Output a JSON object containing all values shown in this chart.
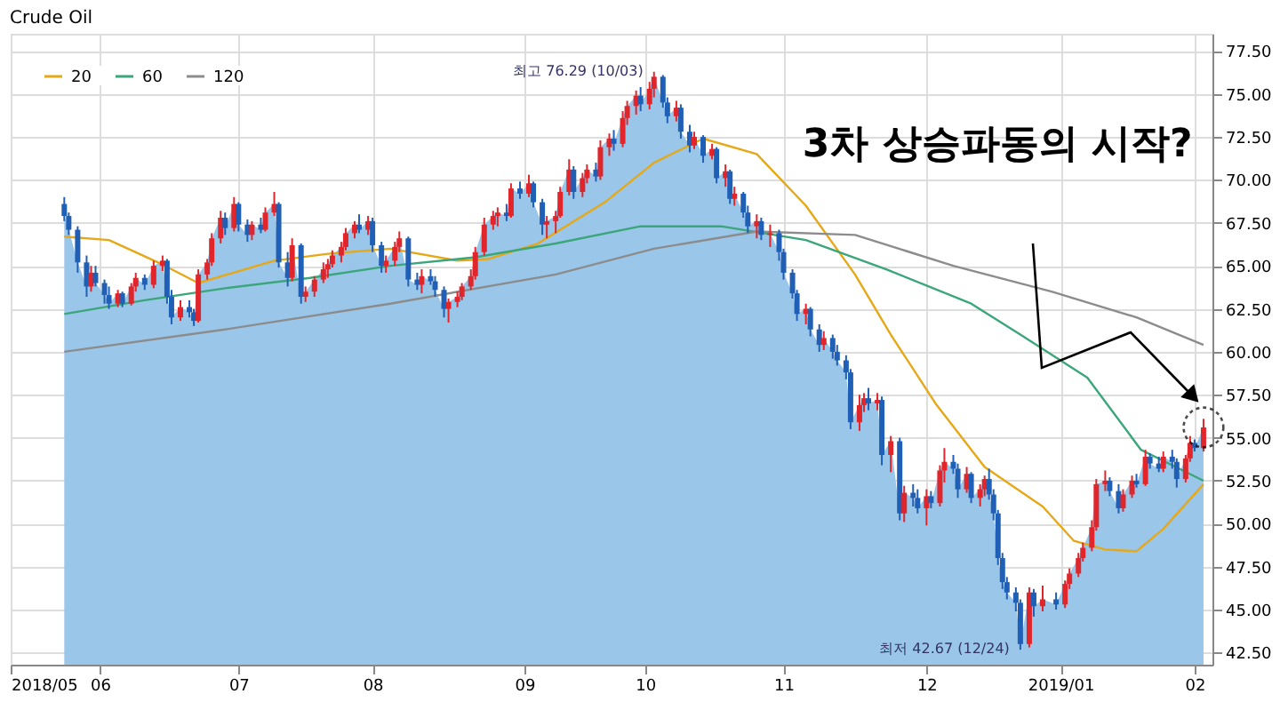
{
  "chart_data": {
    "type": "candlestick",
    "title": "Crude Oil",
    "x": [
      "2018-05-24",
      "2018-05-25",
      "2018-05-27",
      "2018-05-29",
      "2018-05-30",
      "2018-05-31",
      "2018-06-02",
      "2018-06-03",
      "2018-06-05",
      "2018-06-06",
      "2018-06-08",
      "2018-06-09",
      "2018-06-11",
      "2018-06-13",
      "2018-06-15",
      "2018-06-16",
      "2018-06-17",
      "2018-06-19",
      "2018-06-21",
      "2018-06-22",
      "2018-06-23",
      "2018-06-25",
      "2018-06-26",
      "2018-06-28",
      "2018-06-29",
      "2018-07-01",
      "2018-07-02",
      "2018-07-04",
      "2018-07-05",
      "2018-07-07",
      "2018-07-08",
      "2018-07-10",
      "2018-07-11",
      "2018-07-13",
      "2018-07-14",
      "2018-07-16",
      "2018-07-17",
      "2018-07-19",
      "2018-07-21",
      "2018-07-22",
      "2018-07-23",
      "2018-07-25",
      "2018-07-26",
      "2018-07-28",
      "2018-07-29",
      "2018-07-31",
      "2018-08-01",
      "2018-08-03",
      "2018-08-04",
      "2018-08-06",
      "2018-08-07",
      "2018-08-09",
      "2018-08-11",
      "2018-08-12",
      "2018-08-14",
      "2018-08-15",
      "2018-08-17",
      "2018-08-18",
      "2018-08-20",
      "2018-08-21",
      "2018-08-23",
      "2018-08-24",
      "2018-08-26",
      "2018-08-28",
      "2018-08-29",
      "2018-08-31",
      "2018-09-01",
      "2018-09-03",
      "2018-09-05",
      "2018-09-06",
      "2018-09-08",
      "2018-09-09",
      "2018-09-11",
      "2018-09-12",
      "2018-09-14",
      "2018-09-15",
      "2018-09-17",
      "2018-09-18",
      "2018-09-20",
      "2018-09-21",
      "2018-09-23",
      "2018-09-24",
      "2018-09-26",
      "2018-09-27",
      "2018-09-29",
      "2018-09-30",
      "2018-10-02",
      "2018-10-03",
      "2018-10-05",
      "2018-10-06",
      "2018-10-08",
      "2018-10-09",
      "2018-10-11",
      "2018-10-12",
      "2018-10-14",
      "2018-10-16",
      "2018-10-17",
      "2018-10-19",
      "2018-10-20",
      "2018-10-21",
      "2018-10-23",
      "2018-10-24",
      "2018-10-26",
      "2018-10-27",
      "2018-10-29",
      "2018-10-31",
      "2018-11-01",
      "2018-11-03",
      "2018-11-04",
      "2018-11-06",
      "2018-11-07",
      "2018-11-09",
      "2018-11-10",
      "2018-11-12",
      "2018-11-13",
      "2018-11-15",
      "2018-11-16",
      "2018-11-18",
      "2018-11-19",
      "2018-11-20",
      "2018-11-22",
      "2018-11-23",
      "2018-11-25",
      "2018-11-27",
      "2018-11-28",
      "2018-11-30",
      "2018-12-01",
      "2018-12-03",
      "2018-12-04",
      "2018-12-06",
      "2018-12-07",
      "2018-12-09",
      "2018-12-10",
      "2018-12-12",
      "2018-12-13",
      "2018-12-15",
      "2018-12-16",
      "2018-12-17",
      "2018-12-18",
      "2018-12-19",
      "2018-12-20",
      "2018-12-21",
      "2018-12-23",
      "2018-12-24",
      "2018-12-26",
      "2018-12-27",
      "2018-12-29",
      "2019-01-01",
      "2019-01-03",
      "2019-01-04",
      "2019-01-06",
      "2019-01-07",
      "2019-01-09",
      "2019-01-10",
      "2019-01-12",
      "2019-01-13",
      "2019-01-15",
      "2019-01-16",
      "2019-01-18",
      "2019-01-19",
      "2019-01-21",
      "2019-01-22",
      "2019-01-24",
      "2019-01-25",
      "2019-01-27",
      "2019-01-28",
      "2019-01-30",
      "2019-01-31",
      "2019-02-01",
      "2019-02-03"
    ],
    "ohlc": [
      [
        68.6,
        69.0,
        67.6,
        67.9
      ],
      [
        67.9,
        68.1,
        66.8,
        67.1
      ],
      [
        67.1,
        67.3,
        64.6,
        65.2
      ],
      [
        65.2,
        65.6,
        63.2,
        63.8
      ],
      [
        63.8,
        65.0,
        63.5,
        64.6
      ],
      [
        64.6,
        65.0,
        63.8,
        64.0
      ],
      [
        64.0,
        64.2,
        62.8,
        63.3
      ],
      [
        63.3,
        63.8,
        62.5,
        62.8
      ],
      [
        62.8,
        63.6,
        62.6,
        63.4
      ],
      [
        63.4,
        63.5,
        62.6,
        62.8
      ],
      [
        62.8,
        64.0,
        62.7,
        63.8
      ],
      [
        63.8,
        64.6,
        63.5,
        64.3
      ],
      [
        64.3,
        64.5,
        63.6,
        63.9
      ],
      [
        63.9,
        65.3,
        63.7,
        65.0
      ],
      [
        65.0,
        65.6,
        64.7,
        65.3
      ],
      [
        65.3,
        65.4,
        62.8,
        63.2
      ],
      [
        63.2,
        63.6,
        61.6,
        62.0
      ],
      [
        62.0,
        63.0,
        61.8,
        62.6
      ],
      [
        62.6,
        63.0,
        62.0,
        62.3
      ],
      [
        62.3,
        62.5,
        61.5,
        61.8
      ],
      [
        61.8,
        64.8,
        61.7,
        64.5
      ],
      [
        64.5,
        65.4,
        64.2,
        65.2
      ],
      [
        65.2,
        66.9,
        65.0,
        66.6
      ],
      [
        66.6,
        68.2,
        66.3,
        67.8
      ],
      [
        67.8,
        68.1,
        66.8,
        67.2
      ],
      [
        67.2,
        69.0,
        67.0,
        68.6
      ],
      [
        68.6,
        68.7,
        67.0,
        67.4
      ],
      [
        67.4,
        67.7,
        66.4,
        66.8
      ],
      [
        66.8,
        67.6,
        66.5,
        67.4
      ],
      [
        67.4,
        67.8,
        66.9,
        67.1
      ],
      [
        67.1,
        68.4,
        67.0,
        68.1
      ],
      [
        68.1,
        69.3,
        67.9,
        68.6
      ],
      [
        68.6,
        68.7,
        64.9,
        65.2
      ],
      [
        65.2,
        65.8,
        63.8,
        64.3
      ],
      [
        64.3,
        66.6,
        64.1,
        66.2
      ],
      [
        66.2,
        66.3,
        62.8,
        63.2
      ],
      [
        63.2,
        63.8,
        62.9,
        63.5
      ],
      [
        63.5,
        64.4,
        63.2,
        64.2
      ],
      [
        64.2,
        65.2,
        64.0,
        64.8
      ],
      [
        64.8,
        65.4,
        64.3,
        65.1
      ],
      [
        65.1,
        65.9,
        64.9,
        65.6
      ],
      [
        65.6,
        66.4,
        65.2,
        66.1
      ],
      [
        66.1,
        67.2,
        65.9,
        66.9
      ],
      [
        66.9,
        67.6,
        66.6,
        67.4
      ],
      [
        67.4,
        68.0,
        66.9,
        67.1
      ],
      [
        67.1,
        67.9,
        66.8,
        67.6
      ],
      [
        67.6,
        67.8,
        65.8,
        66.2
      ],
      [
        66.2,
        66.4,
        64.6,
        65.0
      ],
      [
        65.0,
        65.6,
        64.6,
        65.3
      ],
      [
        65.3,
        66.4,
        65.0,
        66.1
      ],
      [
        66.1,
        67.0,
        65.8,
        66.6
      ],
      [
        66.6,
        66.7,
        63.8,
        64.2
      ],
      [
        64.2,
        64.6,
        63.6,
        63.9
      ],
      [
        63.9,
        64.8,
        63.4,
        64.4
      ],
      [
        64.4,
        64.8,
        63.9,
        64.1
      ],
      [
        64.1,
        64.4,
        63.2,
        63.6
      ],
      [
        63.6,
        63.8,
        62.0,
        62.5
      ],
      [
        62.5,
        63.1,
        61.7,
        62.9
      ],
      [
        62.9,
        63.5,
        62.6,
        63.2
      ],
      [
        63.2,
        64.0,
        63.0,
        63.8
      ],
      [
        63.8,
        64.8,
        63.6,
        64.4
      ],
      [
        64.4,
        66.1,
        64.2,
        65.8
      ],
      [
        65.8,
        67.8,
        65.6,
        67.4
      ],
      [
        67.4,
        68.2,
        67.1,
        67.9
      ],
      [
        67.9,
        68.4,
        67.3,
        68.1
      ],
      [
        68.1,
        68.6,
        67.6,
        67.9
      ],
      [
        67.9,
        69.8,
        67.8,
        69.5
      ],
      [
        69.5,
        69.9,
        68.9,
        69.2
      ],
      [
        69.2,
        70.3,
        69.0,
        69.8
      ],
      [
        69.8,
        69.9,
        68.4,
        68.7
      ],
      [
        68.7,
        68.9,
        66.8,
        67.4
      ],
      [
        67.4,
        67.9,
        66.6,
        67.6
      ],
      [
        67.6,
        68.2,
        66.9,
        67.9
      ],
      [
        67.9,
        69.6,
        67.8,
        69.3
      ],
      [
        69.3,
        71.2,
        69.1,
        70.6
      ],
      [
        70.6,
        70.8,
        68.9,
        69.3
      ],
      [
        69.3,
        70.4,
        69.0,
        70.1
      ],
      [
        70.1,
        70.9,
        69.8,
        70.6
      ],
      [
        70.6,
        71.0,
        69.9,
        70.2
      ],
      [
        70.2,
        72.3,
        70.0,
        71.9
      ],
      [
        71.9,
        72.7,
        71.4,
        72.4
      ],
      [
        72.4,
        72.9,
        71.7,
        72.1
      ],
      [
        72.1,
        74.0,
        71.9,
        73.6
      ],
      [
        73.6,
        74.6,
        73.2,
        74.3
      ],
      [
        74.3,
        75.2,
        73.8,
        74.9
      ],
      [
        74.9,
        75.4,
        74.0,
        74.4
      ],
      [
        74.4,
        75.7,
        74.1,
        75.3
      ],
      [
        75.3,
        76.29,
        74.8,
        76.0
      ],
      [
        76.0,
        76.1,
        74.2,
        74.5
      ],
      [
        74.5,
        74.8,
        73.3,
        73.7
      ],
      [
        73.7,
        74.6,
        73.4,
        74.2
      ],
      [
        74.2,
        74.4,
        72.4,
        72.8
      ],
      [
        72.8,
        73.2,
        71.6,
        72.0
      ],
      [
        72.0,
        72.8,
        71.8,
        72.5
      ],
      [
        72.5,
        72.6,
        71.0,
        71.4
      ],
      [
        71.4,
        72.1,
        71.2,
        71.8
      ],
      [
        71.8,
        71.9,
        69.8,
        70.1
      ],
      [
        70.1,
        70.9,
        69.6,
        70.5
      ],
      [
        70.5,
        70.6,
        68.6,
        68.9
      ],
      [
        68.9,
        69.6,
        68.5,
        69.2
      ],
      [
        69.2,
        69.3,
        67.8,
        68.1
      ],
      [
        68.1,
        68.5,
        66.9,
        67.3
      ],
      [
        67.3,
        68.0,
        66.6,
        67.6
      ],
      [
        67.6,
        67.8,
        66.5,
        66.8
      ],
      [
        66.8,
        67.4,
        66.1,
        66.9
      ],
      [
        66.9,
        67.1,
        65.3,
        65.8
      ],
      [
        65.8,
        66.0,
        64.2,
        64.6
      ],
      [
        64.6,
        64.8,
        63.1,
        63.4
      ],
      [
        63.4,
        63.6,
        61.8,
        62.2
      ],
      [
        62.2,
        62.8,
        61.6,
        62.5
      ],
      [
        62.5,
        62.6,
        60.9,
        61.3
      ],
      [
        61.3,
        61.6,
        60.0,
        60.4
      ],
      [
        60.4,
        61.2,
        60.1,
        60.8
      ],
      [
        60.8,
        61.0,
        59.6,
        60.0
      ],
      [
        60.0,
        60.4,
        59.2,
        59.5
      ],
      [
        59.5,
        59.8,
        58.4,
        58.8
      ],
      [
        58.8,
        59.0,
        55.5,
        55.9
      ],
      [
        55.9,
        57.5,
        55.4,
        56.9
      ],
      [
        56.9,
        57.6,
        56.5,
        57.3
      ],
      [
        57.3,
        57.9,
        56.6,
        57.0
      ],
      [
        57.0,
        57.6,
        56.6,
        57.2
      ],
      [
        57.2,
        57.4,
        53.4,
        54.0
      ],
      [
        54.0,
        55.1,
        53.0,
        54.8
      ],
      [
        54.8,
        55.0,
        50.2,
        50.6
      ],
      [
        50.6,
        52.2,
        50.1,
        51.8
      ],
      [
        51.8,
        52.3,
        51.0,
        51.5
      ],
      [
        51.5,
        52.0,
        50.6,
        50.9
      ],
      [
        50.9,
        52.0,
        49.9,
        51.6
      ],
      [
        51.6,
        51.9,
        50.9,
        51.2
      ],
      [
        51.2,
        53.4,
        51.0,
        53.1
      ],
      [
        53.1,
        54.4,
        52.4,
        53.6
      ],
      [
        53.6,
        54.0,
        52.9,
        53.2
      ],
      [
        53.2,
        53.5,
        51.5,
        52.0
      ],
      [
        52.0,
        53.3,
        51.8,
        52.9
      ],
      [
        52.9,
        53.0,
        51.2,
        51.5
      ],
      [
        51.5,
        52.3,
        51.0,
        52.0
      ],
      [
        52.0,
        52.8,
        51.6,
        52.6
      ],
      [
        52.6,
        53.2,
        51.4,
        51.7
      ],
      [
        51.7,
        52.0,
        50.2,
        50.6
      ],
      [
        50.6,
        50.8,
        47.6,
        48.0
      ],
      [
        48.0,
        48.3,
        46.2,
        46.6
      ],
      [
        46.6,
        46.9,
        45.6,
        46.0
      ],
      [
        46.0,
        46.3,
        44.9,
        45.4
      ],
      [
        45.4,
        45.6,
        42.67,
        43.0
      ],
      [
        43.0,
        46.3,
        42.8,
        46.0
      ],
      [
        46.0,
        46.2,
        44.6,
        45.2
      ],
      [
        45.2,
        46.4,
        44.9,
        45.6
      ],
      [
        45.6,
        46.0,
        45.0,
        45.3
      ],
      [
        45.3,
        46.7,
        45.1,
        46.5
      ],
      [
        46.5,
        47.4,
        46.2,
        47.1
      ],
      [
        47.1,
        48.3,
        46.9,
        48.0
      ],
      [
        48.0,
        48.9,
        47.8,
        48.6
      ],
      [
        48.6,
        50.2,
        48.4,
        49.8
      ],
      [
        49.8,
        52.6,
        49.6,
        52.3
      ],
      [
        52.3,
        53.1,
        51.9,
        52.5
      ],
      [
        52.5,
        52.7,
        51.6,
        51.9
      ],
      [
        51.9,
        52.3,
        50.6,
        50.9
      ],
      [
        50.9,
        52.0,
        50.7,
        51.7
      ],
      [
        51.7,
        52.8,
        51.5,
        52.5
      ],
      [
        52.5,
        52.9,
        52.1,
        52.3
      ],
      [
        52.3,
        54.3,
        52.2,
        53.9
      ],
      [
        53.9,
        54.1,
        53.2,
        53.5
      ],
      [
        53.5,
        53.9,
        53.0,
        53.2
      ],
      [
        53.2,
        54.2,
        53.0,
        53.9
      ],
      [
        53.9,
        54.3,
        53.2,
        53.6
      ],
      [
        53.6,
        53.8,
        52.1,
        52.6
      ],
      [
        52.6,
        54.0,
        52.4,
        53.8
      ],
      [
        53.8,
        55.1,
        53.6,
        54.7
      ],
      [
        54.7,
        54.9,
        54.2,
        54.4
      ],
      [
        54.4,
        56.1,
        54.2,
        55.6
      ]
    ],
    "colors": [
      "#1f5fb5",
      "#1f5fb5",
      "#1f5fb5",
      "#1f5fb5",
      "#e0262b",
      "#1f5fb5",
      "#1f5fb5",
      "#1f5fb5",
      "#e0262b",
      "#1f5fb5",
      "#e0262b",
      "#e0262b",
      "#1f5fb5",
      "#e0262b",
      "#e0262b",
      "#1f5fb5",
      "#1f5fb5",
      "#e0262b",
      "#1f5fb5",
      "#1f5fb5",
      "#e0262b",
      "#e0262b",
      "#e0262b",
      "#e0262b",
      "#1f5fb5",
      "#e0262b",
      "#1f5fb5",
      "#1f5fb5",
      "#e0262b",
      "#1f5fb5",
      "#e0262b",
      "#e0262b",
      "#1f5fb5",
      "#1f5fb5",
      "#e0262b",
      "#1f5fb5",
      "#e0262b",
      "#e0262b",
      "#e0262b",
      "#e0262b",
      "#e0262b",
      "#e0262b",
      "#e0262b",
      "#e0262b",
      "#1f5fb5",
      "#e0262b",
      "#1f5fb5",
      "#1f5fb5",
      "#e0262b",
      "#e0262b",
      "#e0262b",
      "#1f5fb5",
      "#1f5fb5",
      "#e0262b",
      "#1f5fb5",
      "#1f5fb5",
      "#1f5fb5",
      "#e0262b",
      "#e0262b",
      "#e0262b",
      "#e0262b",
      "#e0262b",
      "#e0262b",
      "#e0262b",
      "#e0262b",
      "#1f5fb5",
      "#e0262b",
      "#1f5fb5",
      "#e0262b",
      "#1f5fb5",
      "#1f5fb5",
      "#e0262b",
      "#e0262b",
      "#e0262b",
      "#e0262b",
      "#1f5fb5",
      "#e0262b",
      "#e0262b",
      "#1f5fb5",
      "#e0262b",
      "#e0262b",
      "#1f5fb5",
      "#e0262b",
      "#e0262b",
      "#e0262b",
      "#1f5fb5",
      "#e0262b",
      "#e0262b",
      "#1f5fb5",
      "#1f5fb5",
      "#e0262b",
      "#1f5fb5",
      "#1f5fb5",
      "#e0262b",
      "#1f5fb5",
      "#e0262b",
      "#1f5fb5",
      "#e0262b",
      "#1f5fb5",
      "#e0262b",
      "#1f5fb5",
      "#1f5fb5",
      "#e0262b",
      "#1f5fb5",
      "#e0262b",
      "#1f5fb5",
      "#1f5fb5",
      "#1f5fb5",
      "#1f5fb5",
      "#e0262b",
      "#1f5fb5",
      "#1f5fb5",
      "#e0262b",
      "#1f5fb5",
      "#1f5fb5",
      "#1f5fb5",
      "#1f5fb5",
      "#e0262b",
      "#e0262b",
      "#1f5fb5",
      "#e0262b",
      "#1f5fb5",
      "#e0262b",
      "#1f5fb5",
      "#e0262b",
      "#1f5fb5",
      "#1f5fb5",
      "#e0262b",
      "#1f5fb5",
      "#e0262b",
      "#e0262b",
      "#1f5fb5",
      "#1f5fb5",
      "#e0262b",
      "#1f5fb5",
      "#e0262b",
      "#e0262b",
      "#1f5fb5",
      "#1f5fb5",
      "#1f5fb5",
      "#1f5fb5",
      "#1f5fb5",
      "#1f5fb5",
      "#1f5fb5",
      "#e0262b",
      "#1f5fb5",
      "#e0262b",
      "#1f5fb5",
      "#e0262b",
      "#e0262b",
      "#e0262b",
      "#e0262b",
      "#e0262b",
      "#e0262b",
      "#e0262b",
      "#1f5fb5",
      "#1f5fb5",
      "#e0262b",
      "#e0262b",
      "#1f5fb5",
      "#e0262b",
      "#1f5fb5",
      "#1f5fb5",
      "#e0262b",
      "#1f5fb5",
      "#1f5fb5",
      "#e0262b",
      "#e0262b",
      "#1f5fb5",
      "#e0262b"
    ],
    "series": [
      {
        "type": "area",
        "color": "#9ac6ea",
        "values": [
          67.9,
          67.1,
          65.2,
          63.8,
          64.6,
          64.0,
          63.3,
          62.8,
          63.4,
          62.8,
          63.8,
          64.3,
          63.9,
          65.0,
          65.3,
          63.2,
          62.0,
          62.6,
          62.3,
          61.8,
          64.5,
          65.2,
          66.6,
          67.8,
          67.2,
          68.6,
          67.4,
          66.8,
          67.4,
          67.1,
          68.1,
          68.6,
          65.2,
          64.3,
          66.2,
          63.2,
          63.5,
          64.2,
          64.8,
          65.1,
          65.6,
          66.1,
          66.9,
          67.4,
          67.1,
          67.6,
          66.2,
          65.0,
          65.3,
          66.1,
          66.6,
          64.2,
          63.9,
          64.4,
          64.1,
          63.6,
          62.5,
          62.9,
          63.2,
          63.8,
          64.4,
          65.8,
          67.4,
          67.9,
          68.1,
          67.9,
          69.5,
          69.2,
          69.8,
          68.7,
          67.4,
          67.6,
          67.9,
          69.3,
          70.6,
          69.3,
          70.1,
          70.6,
          70.2,
          71.9,
          72.4,
          72.1,
          73.6,
          74.3,
          74.9,
          74.4,
          75.3,
          76.0,
          74.5,
          73.7,
          74.2,
          72.8,
          72.0,
          72.5,
          71.4,
          71.8,
          70.1,
          70.5,
          68.9,
          69.2,
          68.1,
          67.3,
          67.6,
          66.8,
          66.9,
          65.8,
          64.6,
          63.4,
          62.2,
          62.5,
          61.3,
          60.4,
          60.8,
          60.0,
          59.5,
          58.8,
          55.9,
          56.9,
          57.3,
          57.0,
          57.2,
          54.0,
          54.8,
          50.6,
          51.8,
          51.5,
          50.9,
          51.6,
          51.2,
          53.1,
          53.6,
          53.2,
          52.0,
          52.9,
          51.5,
          52.0,
          52.6,
          51.7,
          50.6,
          48.0,
          46.6,
          46.0,
          45.4,
          43.0,
          46.0,
          45.2,
          45.6,
          45.3,
          46.5,
          47.1,
          48.0,
          48.6,
          49.8,
          52.3,
          52.5,
          51.9,
          50.9,
          51.7,
          52.5,
          52.3,
          53.9,
          53.5,
          53.2,
          53.9,
          53.6,
          52.6,
          53.8,
          54.7,
          54.4,
          55.6
        ]
      },
      {
        "type": "line",
        "name": "20",
        "color": "#e6a817",
        "x": [
          "2018-05-24",
          "2018-06-03",
          "2018-06-14",
          "2018-06-23",
          "2018-07-10",
          "2018-07-22",
          "2018-08-05",
          "2018-08-20",
          "2018-08-27",
          "2018-09-07",
          "2018-09-22",
          "2018-10-03",
          "2018-10-14",
          "2018-10-26",
          "2018-11-06",
          "2018-11-17",
          "2018-11-25",
          "2018-12-05",
          "2018-12-16",
          "2018-12-29",
          "2019-01-05",
          "2019-01-12",
          "2019-01-19",
          "2019-01-25",
          "2019-02-03"
        ],
        "values": [
          66.7,
          66.5,
          65.2,
          64.0,
          65.3,
          65.7,
          66.0,
          65.3,
          65.4,
          66.3,
          68.7,
          71.0,
          72.4,
          71.5,
          68.5,
          64.5,
          61.0,
          57.0,
          53.3,
          51.0,
          49.0,
          48.5,
          48.4,
          49.7,
          52.3
        ]
      },
      {
        "type": "line",
        "name": "60",
        "color": "#3aa67a",
        "x": [
          "2018-05-24",
          "2018-06-11",
          "2018-06-29",
          "2018-07-18",
          "2018-08-05",
          "2018-08-24",
          "2018-09-11",
          "2018-09-30",
          "2018-10-18",
          "2018-11-06",
          "2018-11-24",
          "2018-12-13",
          "2018-12-24",
          "2019-01-08",
          "2019-01-20",
          "2019-02-03"
        ],
        "values": [
          62.2,
          63.0,
          63.7,
          64.3,
          65.0,
          65.5,
          66.3,
          67.3,
          67.3,
          66.5,
          64.8,
          62.8,
          61.0,
          58.5,
          54.3,
          52.5
        ]
      },
      {
        "type": "line",
        "name": "120",
        "color": "#8c8c8c",
        "x": [
          "2018-05-24",
          "2018-06-29",
          "2018-08-05",
          "2018-09-11",
          "2018-10-03",
          "2018-10-26",
          "2018-11-17",
          "2018-12-09",
          "2018-12-31",
          "2019-01-19",
          "2019-02-03"
        ],
        "values": [
          60.0,
          61.3,
          62.8,
          64.5,
          66.0,
          67.0,
          66.8,
          65.0,
          63.5,
          62.0,
          60.4
        ]
      }
    ],
    "xlim": [
      "2018-05-12",
      "2019-02-05"
    ],
    "xticks": [
      {
        "value": "2018-05-12",
        "label": "2018/05"
      },
      {
        "value": "2018-06-01",
        "label": "06"
      },
      {
        "value": "2018-07-02",
        "label": "07"
      },
      {
        "value": "2018-08-01",
        "label": "08"
      },
      {
        "value": "2018-09-04",
        "label": "09"
      },
      {
        "value": "2018-10-01",
        "label": "10"
      },
      {
        "value": "2018-11-01",
        "label": "11"
      },
      {
        "value": "2018-12-03",
        "label": "12"
      },
      {
        "value": "2019-01-02",
        "label": "2019/01"
      },
      {
        "value": "2019-02-01",
        "label": "02"
      }
    ],
    "ylim": [
      41.8,
      78.5
    ],
    "yticks": [
      {
        "value": 42.5,
        "label": "42.50"
      },
      {
        "value": 45,
        "label": "45.00"
      },
      {
        "value": 47.5,
        "label": "47.50"
      },
      {
        "value": 50,
        "label": "50.00"
      },
      {
        "value": 52.5,
        "label": "52.50"
      },
      {
        "value": 55,
        "label": "55.00"
      },
      {
        "value": 57.5,
        "label": "57.50"
      },
      {
        "value": 60,
        "label": "60.00"
      },
      {
        "value": 62.5,
        "label": "62.50"
      },
      {
        "value": 65,
        "label": "65.00"
      },
      {
        "value": 67.5,
        "label": "67.50"
      },
      {
        "value": 70,
        "label": "70.00"
      },
      {
        "value": 72.5,
        "label": "72.50"
      },
      {
        "value": 75,
        "label": "75.00"
      },
      {
        "value": 77.5,
        "label": "77.50"
      }
    ],
    "grid": true,
    "legend": "top left",
    "annotations": [
      {
        "text": "최고 76.29 (10/03)",
        "x": "2018-10-03",
        "y": 76.29
      },
      {
        "text": "최저 42.67 (12/24)",
        "x": "2018-12-24",
        "y": 42.67
      },
      "3차 상승파동의 시작?"
    ]
  }
}
